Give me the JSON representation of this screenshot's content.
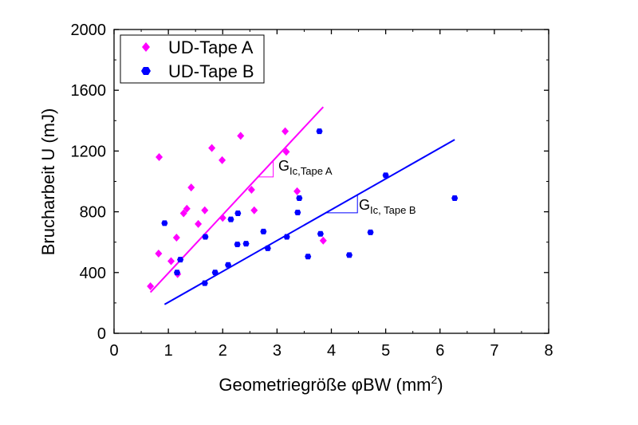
{
  "chart_data": {
    "type": "scatter",
    "xlabel": "Geometriegröße φBW (mm²)",
    "xlabel_parts": {
      "main": "Geometriegröße φBW (mm",
      "sup": "2",
      "close": ")"
    },
    "ylabel": "Brucharbeit U (mJ)",
    "xlim": [
      0,
      8
    ],
    "ylim": [
      0,
      2000
    ],
    "xticks": [
      "0",
      "1",
      "2",
      "3",
      "4",
      "5",
      "6",
      "7",
      "8"
    ],
    "yticks": [
      "0",
      "400",
      "800",
      "1200",
      "1600",
      "2000"
    ],
    "xtick_values": [
      0,
      1,
      2,
      3,
      4,
      5,
      6,
      7,
      8
    ],
    "ytick_values": [
      0,
      400,
      800,
      1200,
      1600,
      2000
    ],
    "grid": false,
    "legend_position": "top-left",
    "series": [
      {
        "name": "UD-Tape A",
        "marker": "diamond",
        "color": "#ff00ff",
        "points": [
          [
            0.67,
            310
          ],
          [
            0.82,
            525
          ],
          [
            0.83,
            1160
          ],
          [
            1.05,
            475
          ],
          [
            1.15,
            630
          ],
          [
            1.17,
            390
          ],
          [
            1.28,
            790
          ],
          [
            1.34,
            820
          ],
          [
            1.42,
            960
          ],
          [
            1.55,
            720
          ],
          [
            1.67,
            810
          ],
          [
            1.8,
            1220
          ],
          [
            1.99,
            1140
          ],
          [
            2.0,
            760
          ],
          [
            2.33,
            1300
          ],
          [
            2.53,
            945
          ],
          [
            2.58,
            810
          ],
          [
            3.15,
            1330
          ],
          [
            3.17,
            1195
          ],
          [
            3.37,
            935
          ],
          [
            3.85,
            610
          ]
        ],
        "fit": {
          "x": [
            0.67,
            3.85
          ],
          "y": [
            270,
            1490
          ]
        },
        "annotation": {
          "main": "G",
          "sub": "Ic,Tape A"
        }
      },
      {
        "name": "UD-Tape B",
        "marker": "hexagon",
        "color": "#0000ff",
        "points": [
          [
            0.93,
            725
          ],
          [
            1.16,
            400
          ],
          [
            1.22,
            485
          ],
          [
            1.67,
            330
          ],
          [
            1.68,
            635
          ],
          [
            1.86,
            400
          ],
          [
            2.1,
            450
          ],
          [
            2.15,
            750
          ],
          [
            2.27,
            585
          ],
          [
            2.28,
            790
          ],
          [
            2.43,
            590
          ],
          [
            2.75,
            670
          ],
          [
            2.83,
            560
          ],
          [
            3.18,
            635
          ],
          [
            3.38,
            795
          ],
          [
            3.41,
            890
          ],
          [
            3.57,
            505
          ],
          [
            3.78,
            1330
          ],
          [
            3.8,
            655
          ],
          [
            4.33,
            515
          ],
          [
            4.72,
            665
          ],
          [
            5.0,
            1040
          ],
          [
            6.27,
            890
          ]
        ],
        "fit": {
          "x": [
            0.93,
            6.27
          ],
          "y": [
            190,
            1275
          ]
        },
        "annotation": {
          "main": "G",
          "sub": "Ic, Tape B"
        }
      }
    ]
  }
}
